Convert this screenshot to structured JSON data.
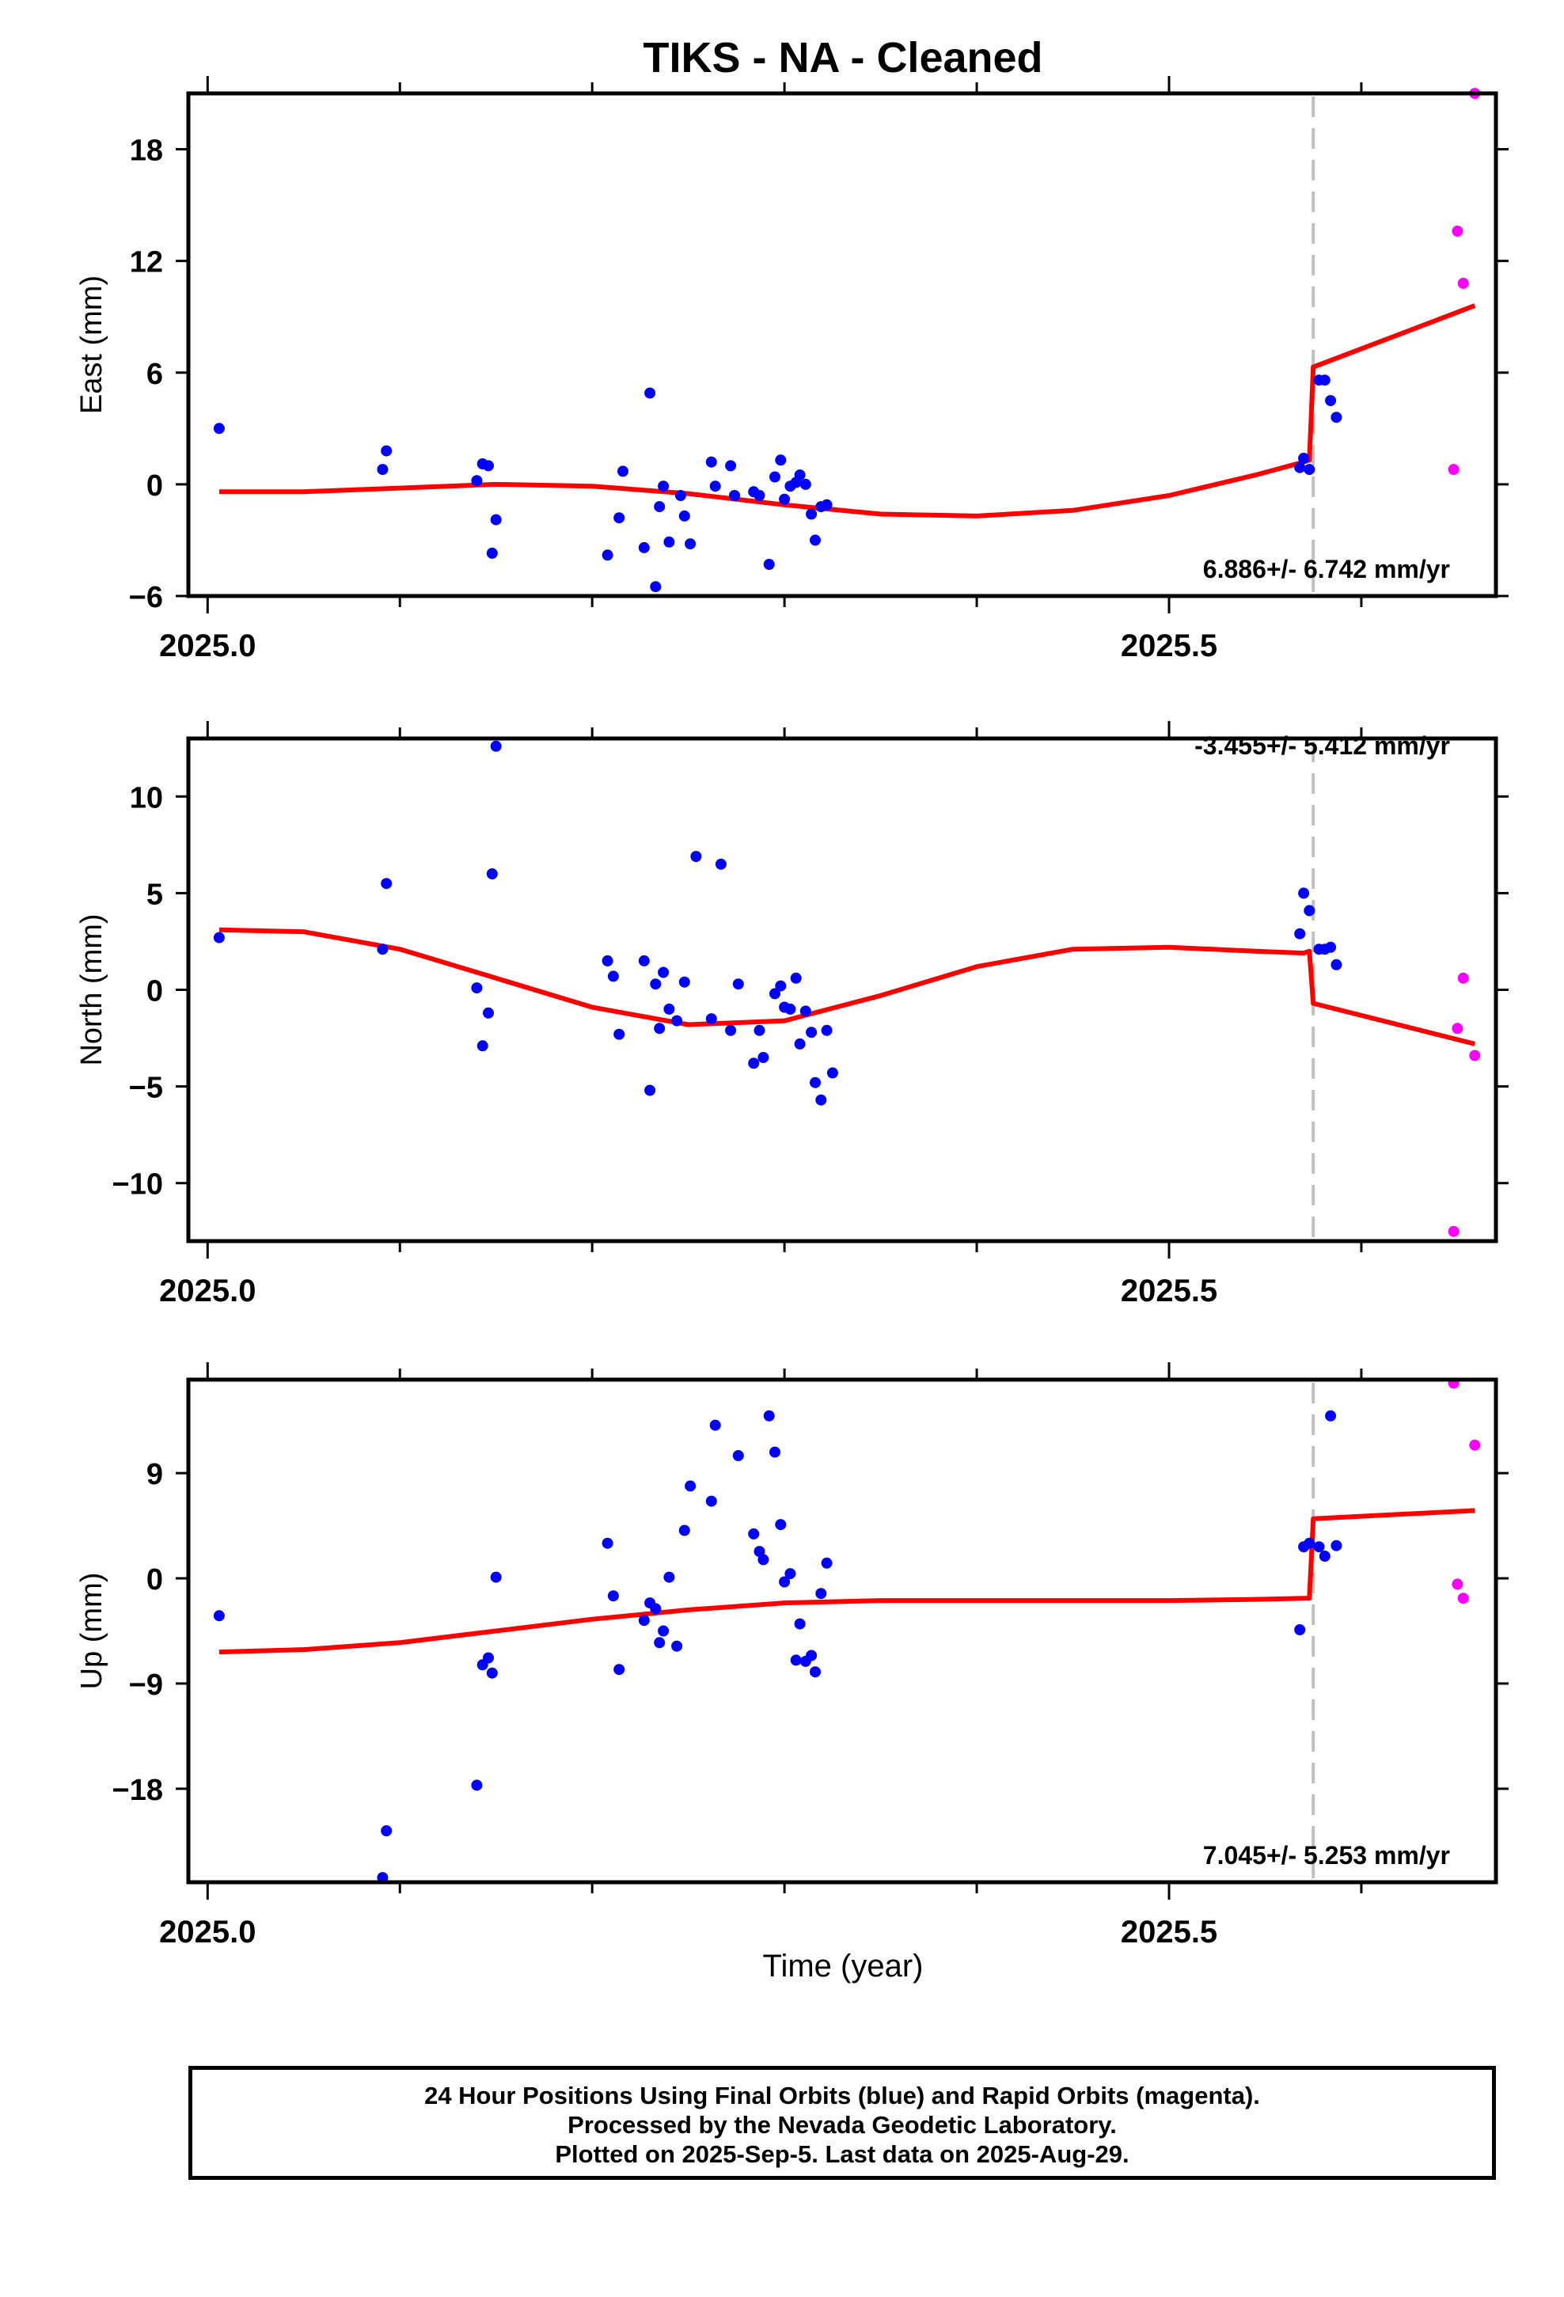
{
  "title": "TIKS  - NA - Cleaned",
  "xlabel": "Time (year)",
  "footer": {
    "line1": "24 Hour Positions Using Final Orbits (blue) and Rapid Orbits (magenta).",
    "line2": "Processed by the Nevada Geodetic Laboratory.",
    "line3": "Plotted on 2025-Sep-5. Last data on 2025-Aug-29."
  },
  "colors": {
    "final": "#0000ff",
    "rapid": "#ff00ff",
    "model": "#ff0000",
    "event_line": "#c0c0c0"
  },
  "chart_data": [
    {
      "type": "scatter",
      "ylabel": "East (mm)",
      "xlim": [
        2024.99,
        2025.67
      ],
      "ylim": [
        -6,
        21
      ],
      "yticks": [
        -6,
        0,
        6,
        12,
        18
      ],
      "xticks": [
        2025.0,
        2025.5
      ],
      "xtick_labels": [
        "2025.0",
        "2025.5"
      ],
      "event_x": 2025.575,
      "rate_text": "6.886+/- 6.742 mm/yr",
      "series": [
        {
          "points": [
            [
              2025.006,
              3.0
            ],
            [
              2025.091,
              0.8
            ],
            [
              2025.093,
              1.8
            ],
            [
              2025.14,
              0.2
            ],
            [
              2025.143,
              1.1
            ],
            [
              2025.146,
              1.0
            ],
            [
              2025.148,
              -3.7
            ],
            [
              2025.15,
              -1.9
            ],
            [
              2025.208,
              -3.8
            ],
            [
              2025.214,
              -1.8
            ],
            [
              2025.216,
              0.7
            ],
            [
              2025.227,
              -3.4
            ],
            [
              2025.23,
              4.9
            ],
            [
              2025.233,
              -5.5
            ],
            [
              2025.235,
              -1.2
            ],
            [
              2025.237,
              -0.1
            ],
            [
              2025.24,
              -3.1
            ],
            [
              2025.246,
              -0.6
            ],
            [
              2025.248,
              -1.7
            ],
            [
              2025.251,
              -3.2
            ],
            [
              2025.262,
              1.2
            ],
            [
              2025.264,
              -0.1
            ],
            [
              2025.272,
              1.0
            ],
            [
              2025.274,
              -0.6
            ],
            [
              2025.284,
              -0.4
            ],
            [
              2025.287,
              -0.6
            ],
            [
              2025.292,
              -4.3
            ],
            [
              2025.295,
              0.4
            ],
            [
              2025.298,
              1.3
            ],
            [
              2025.3,
              -0.8
            ],
            [
              2025.303,
              -0.1
            ],
            [
              2025.306,
              0.1
            ],
            [
              2025.308,
              0.5
            ],
            [
              2025.311,
              0.0
            ],
            [
              2025.314,
              -1.6
            ],
            [
              2025.316,
              -3.0
            ],
            [
              2025.319,
              -1.2
            ],
            [
              2025.322,
              -1.1
            ],
            [
              2025.568,
              0.9
            ],
            [
              2025.57,
              1.4
            ],
            [
              2025.573,
              0.8
            ],
            [
              2025.578,
              5.6
            ],
            [
              2025.581,
              5.6
            ],
            [
              2025.584,
              4.5
            ],
            [
              2025.587,
              3.6
            ]
          ]
        },
        {
          "points": [
            [
              2025.648,
              0.8
            ],
            [
              2025.65,
              13.6
            ],
            [
              2025.653,
              10.8
            ],
            [
              2025.659,
              21.0
            ]
          ]
        }
      ],
      "model": [
        [
          2025.006,
          -0.4
        ],
        [
          2025.05,
          -0.4
        ],
        [
          2025.1,
          -0.2
        ],
        [
          2025.15,
          0.0
        ],
        [
          2025.2,
          -0.1
        ],
        [
          2025.25,
          -0.5
        ],
        [
          2025.3,
          -1.1
        ],
        [
          2025.35,
          -1.6
        ],
        [
          2025.4,
          -1.7
        ],
        [
          2025.45,
          -1.4
        ],
        [
          2025.5,
          -0.6
        ],
        [
          2025.545,
          0.5
        ],
        [
          2025.57,
          1.2
        ],
        [
          2025.573,
          1.3
        ],
        [
          2025.575,
          6.3
        ],
        [
          2025.659,
          9.6
        ]
      ]
    },
    {
      "type": "scatter",
      "ylabel": "North (mm)",
      "xlim": [
        2024.99,
        2025.67
      ],
      "ylim": [
        -13,
        13
      ],
      "yticks": [
        -10,
        -5,
        0,
        5,
        10
      ],
      "xticks": [
        2025.0,
        2025.5
      ],
      "xtick_labels": [
        "2025.0",
        "2025.5"
      ],
      "event_x": 2025.575,
      "rate_text": "-3.455+/- 5.412 mm/yr",
      "series": [
        {
          "points": [
            [
              2025.006,
              2.7
            ],
            [
              2025.091,
              2.1
            ],
            [
              2025.093,
              5.5
            ],
            [
              2025.14,
              0.1
            ],
            [
              2025.143,
              -2.9
            ],
            [
              2025.146,
              -1.2
            ],
            [
              2025.148,
              6.0
            ],
            [
              2025.15,
              12.6
            ],
            [
              2025.208,
              1.5
            ],
            [
              2025.211,
              0.7
            ],
            [
              2025.214,
              -2.3
            ],
            [
              2025.227,
              1.5
            ],
            [
              2025.23,
              -5.2
            ],
            [
              2025.233,
              0.3
            ],
            [
              2025.235,
              -2.0
            ],
            [
              2025.237,
              0.9
            ],
            [
              2025.24,
              -1.0
            ],
            [
              2025.244,
              -1.6
            ],
            [
              2025.248,
              0.4
            ],
            [
              2025.254,
              6.9
            ],
            [
              2025.262,
              -1.5
            ],
            [
              2025.267,
              6.5
            ],
            [
              2025.272,
              -2.1
            ],
            [
              2025.276,
              0.3
            ],
            [
              2025.284,
              -3.8
            ],
            [
              2025.287,
              -2.1
            ],
            [
              2025.289,
              -3.5
            ],
            [
              2025.295,
              -0.2
            ],
            [
              2025.298,
              0.2
            ],
            [
              2025.3,
              -0.9
            ],
            [
              2025.303,
              -1.0
            ],
            [
              2025.306,
              0.6
            ],
            [
              2025.308,
              -2.8
            ],
            [
              2025.311,
              -1.1
            ],
            [
              2025.314,
              -2.2
            ],
            [
              2025.316,
              -4.8
            ],
            [
              2025.319,
              -5.7
            ],
            [
              2025.322,
              -2.1
            ],
            [
              2025.325,
              -4.3
            ],
            [
              2025.568,
              2.9
            ],
            [
              2025.57,
              5.0
            ],
            [
              2025.573,
              4.1
            ],
            [
              2025.578,
              2.1
            ],
            [
              2025.581,
              2.1
            ],
            [
              2025.584,
              2.2
            ],
            [
              2025.587,
              1.3
            ]
          ]
        },
        {
          "points": [
            [
              2025.648,
              -12.5
            ],
            [
              2025.65,
              -2.0
            ],
            [
              2025.653,
              0.6
            ],
            [
              2025.659,
              -3.4
            ]
          ]
        }
      ],
      "model": [
        [
          2025.006,
          3.1
        ],
        [
          2025.05,
          3.0
        ],
        [
          2025.1,
          2.1
        ],
        [
          2025.15,
          0.6
        ],
        [
          2025.2,
          -0.9
        ],
        [
          2025.25,
          -1.8
        ],
        [
          2025.3,
          -1.6
        ],
        [
          2025.35,
          -0.3
        ],
        [
          2025.4,
          1.2
        ],
        [
          2025.45,
          2.1
        ],
        [
          2025.5,
          2.2
        ],
        [
          2025.545,
          2.0
        ],
        [
          2025.57,
          1.9
        ],
        [
          2025.573,
          2.0
        ],
        [
          2025.575,
          -0.7
        ],
        [
          2025.659,
          -2.8
        ]
      ]
    },
    {
      "type": "scatter",
      "ylabel": "Up (mm)",
      "xlim": [
        2024.99,
        2025.67
      ],
      "ylim": [
        -26,
        17
      ],
      "yticks": [
        -18,
        -9,
        0,
        9
      ],
      "xticks": [
        2025.0,
        2025.5
      ],
      "xtick_labels": [
        "2025.0",
        "2025.5"
      ],
      "event_x": 2025.575,
      "rate_text": "7.045+/- 5.253 mm/yr",
      "series": [
        {
          "points": [
            [
              2025.006,
              -3.2
            ],
            [
              2025.091,
              -25.6
            ],
            [
              2025.093,
              -21.6
            ],
            [
              2025.14,
              -17.7
            ],
            [
              2025.143,
              -7.4
            ],
            [
              2025.146,
              -6.8
            ],
            [
              2025.148,
              -8.1
            ],
            [
              2025.15,
              0.1
            ],
            [
              2025.208,
              3.0
            ],
            [
              2025.211,
              -1.5
            ],
            [
              2025.214,
              -7.8
            ],
            [
              2025.227,
              -3.6
            ],
            [
              2025.23,
              -2.1
            ],
            [
              2025.233,
              -2.6
            ],
            [
              2025.235,
              -5.5
            ],
            [
              2025.237,
              -4.5
            ],
            [
              2025.24,
              0.1
            ],
            [
              2025.244,
              -5.8
            ],
            [
              2025.248,
              4.1
            ],
            [
              2025.251,
              7.9
            ],
            [
              2025.262,
              6.6
            ],
            [
              2025.264,
              13.1
            ],
            [
              2025.276,
              10.5
            ],
            [
              2025.284,
              3.8
            ],
            [
              2025.287,
              2.3
            ],
            [
              2025.289,
              1.6
            ],
            [
              2025.292,
              13.9
            ],
            [
              2025.295,
              10.8
            ],
            [
              2025.298,
              4.6
            ],
            [
              2025.3,
              -0.3
            ],
            [
              2025.303,
              0.4
            ],
            [
              2025.306,
              -7.0
            ],
            [
              2025.308,
              -3.9
            ],
            [
              2025.311,
              -7.1
            ],
            [
              2025.314,
              -6.6
            ],
            [
              2025.316,
              -8.0
            ],
            [
              2025.319,
              -1.3
            ],
            [
              2025.322,
              1.3
            ],
            [
              2025.568,
              -4.4
            ],
            [
              2025.57,
              2.7
            ],
            [
              2025.573,
              3.0
            ],
            [
              2025.578,
              2.7
            ],
            [
              2025.581,
              1.9
            ],
            [
              2025.584,
              13.9
            ],
            [
              2025.587,
              2.8
            ]
          ]
        },
        {
          "points": [
            [
              2025.648,
              16.7
            ],
            [
              2025.65,
              -0.5
            ],
            [
              2025.653,
              -1.7
            ],
            [
              2025.659,
              11.4
            ]
          ]
        }
      ],
      "model": [
        [
          2025.006,
          -6.3
        ],
        [
          2025.05,
          -6.1
        ],
        [
          2025.1,
          -5.5
        ],
        [
          2025.15,
          -4.5
        ],
        [
          2025.2,
          -3.5
        ],
        [
          2025.25,
          -2.7
        ],
        [
          2025.3,
          -2.1
        ],
        [
          2025.35,
          -1.9
        ],
        [
          2025.4,
          -1.9
        ],
        [
          2025.45,
          -1.9
        ],
        [
          2025.5,
          -1.9
        ],
        [
          2025.545,
          -1.8
        ],
        [
          2025.57,
          -1.7
        ],
        [
          2025.573,
          -1.7
        ],
        [
          2025.575,
          5.1
        ],
        [
          2025.659,
          5.8
        ]
      ]
    }
  ]
}
